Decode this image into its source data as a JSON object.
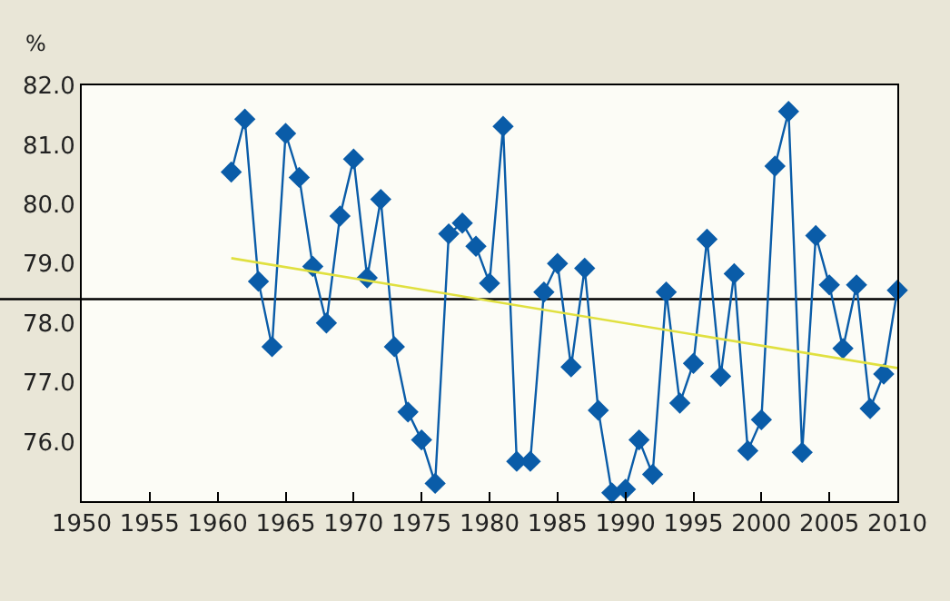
{
  "chart_data": {
    "type": "line",
    "ylabel": "%",
    "x": [
      1961,
      1962,
      1963,
      1964,
      1965,
      1966,
      1967,
      1968,
      1969,
      1970,
      1971,
      1972,
      1973,
      1974,
      1975,
      1976,
      1977,
      1978,
      1979,
      1980,
      1981,
      1982,
      1983,
      1984,
      1985,
      1986,
      1987,
      1988,
      1989,
      1990,
      1991,
      1992,
      1993,
      1994,
      1995,
      1996,
      1997,
      1998,
      1999,
      2000,
      2001,
      2002,
      2003,
      2004,
      2005,
      2006,
      2007,
      2008,
      2009,
      2010
    ],
    "series": [
      {
        "color": "#0a5ca8",
        "marker": "diamond",
        "values": [
          80.54,
          81.43,
          78.7,
          77.6,
          81.19,
          80.45,
          78.95,
          78.0,
          79.8,
          80.76,
          78.76,
          80.08,
          77.6,
          76.5,
          76.03,
          75.3,
          79.5,
          79.68,
          79.29,
          78.67,
          81.31,
          75.67,
          75.67,
          78.52,
          79.0,
          77.26,
          78.92,
          76.53,
          75.14,
          75.2,
          76.03,
          75.45,
          78.52,
          76.65,
          77.32,
          79.41,
          77.1,
          78.83,
          75.85,
          76.37,
          80.64,
          81.56,
          75.82,
          79.47,
          78.64,
          77.57,
          78.64,
          76.56,
          77.14,
          78.55
        ]
      },
      {
        "type": "line",
        "color": "#e0e040",
        "marker": "none",
        "x": [
          1961,
          2010
        ],
        "values": [
          79.09,
          77.24
        ]
      }
    ],
    "xlim": [
      1950,
      2010
    ],
    "xticks": [
      1950,
      1955,
      1960,
      1965,
      1970,
      1975,
      1980,
      1985,
      1990,
      1995,
      2000,
      2005,
      2010
    ],
    "ylim": [
      75,
      82
    ],
    "yticks": [
      {
        "value": 76,
        "label": "76.0"
      },
      {
        "value": 77,
        "label": "77.0"
      },
      {
        "value": 78,
        "label": "78.0"
      },
      {
        "value": 79,
        "label": "79.0"
      },
      {
        "value": 80,
        "label": "80.0"
      },
      {
        "value": 81,
        "label": "81.0"
      },
      {
        "value": 82,
        "label": "82.0"
      }
    ],
    "ref_lines": [
      {
        "axis": "y",
        "value": 78.4,
        "color": "#000000"
      }
    ],
    "grid": false
  }
}
